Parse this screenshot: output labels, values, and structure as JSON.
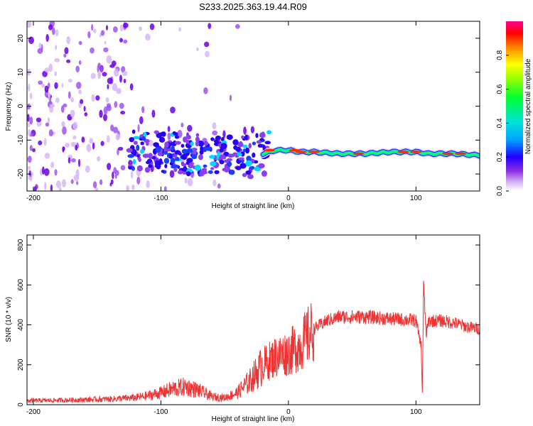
{
  "title": "S233.2025.363.19.44.R09",
  "chart_data": [
    {
      "type": "heatmap",
      "title": "S233.2025.363.19.44.R09",
      "xlabel": "Height of straight line (km)",
      "ylabel": "Frequency (Hz)",
      "xlim": [
        -205,
        150
      ],
      "ylim": [
        -25,
        25
      ],
      "xticks": [
        -200,
        -100,
        0,
        100
      ],
      "yticks": [
        -20,
        -10,
        0,
        10,
        20
      ],
      "x_tick_labels": [
        "-200",
        "-100",
        "0",
        "100"
      ],
      "y_tick_labels": [
        "-20",
        "-10",
        "0",
        "10",
        "20"
      ],
      "colorbar": {
        "label": "Normalized spectral amplitude",
        "range": [
          0.0,
          1.0
        ],
        "ticks": [
          0.0,
          0.2,
          0.4,
          0.6,
          0.8
        ],
        "tick_labels": [
          "0.0",
          "0.2",
          "0.4",
          "0.6",
          "0.8"
        ],
        "colormap": [
          "#f4e8ff",
          "#8a2be2",
          "#2000ff",
          "#00c0ff",
          "#00ff40",
          "#ffff00",
          "#ff8000",
          "#ff0000",
          "#ff0090"
        ]
      },
      "signal_band": {
        "description_values": "dominant tone frequency vs height",
        "x": [
          -120,
          -100,
          -80,
          -60,
          -40,
          -30,
          -20,
          -10,
          0,
          10,
          20,
          40,
          60,
          80,
          100,
          110,
          130,
          150
        ],
        "y": [
          -13,
          -13.5,
          -14,
          -14.5,
          -15,
          -15,
          -14,
          -13,
          -13,
          -13.5,
          -13.5,
          -14,
          -14,
          -13.5,
          -13.5,
          -14,
          -14,
          -14.5
        ]
      }
    },
    {
      "type": "line",
      "xlabel": "Height of straight line (km)",
      "ylabel": "SNR (10 * v/v)",
      "xlim": [
        -205,
        150
      ],
      "ylim": [
        0,
        850
      ],
      "xticks": [
        -200,
        -100,
        0,
        100
      ],
      "yticks": [
        0,
        200,
        400,
        600,
        800
      ],
      "x_tick_labels": [
        "-200",
        "-100",
        "0",
        "100"
      ],
      "y_tick_labels": [
        "0",
        "200",
        "400",
        "600",
        "800"
      ],
      "series": [
        {
          "name": "SNR",
          "color": "#ee3333",
          "x": [
            -205,
            -180,
            -160,
            -140,
            -120,
            -110,
            -100,
            -90,
            -80,
            -70,
            -60,
            -50,
            -40,
            -30,
            -20,
            -10,
            0,
            10,
            20,
            30,
            40,
            60,
            80,
            95,
            100,
            104,
            105,
            106,
            108,
            110,
            120,
            130,
            140,
            150
          ],
          "y": [
            20,
            22,
            25,
            28,
            35,
            45,
            60,
            80,
            90,
            70,
            40,
            35,
            60,
            120,
            200,
            240,
            260,
            300,
            380,
            420,
            440,
            440,
            430,
            425,
            420,
            300,
            60,
            600,
            350,
            420,
            420,
            410,
            390,
            380
          ]
        }
      ]
    }
  ]
}
